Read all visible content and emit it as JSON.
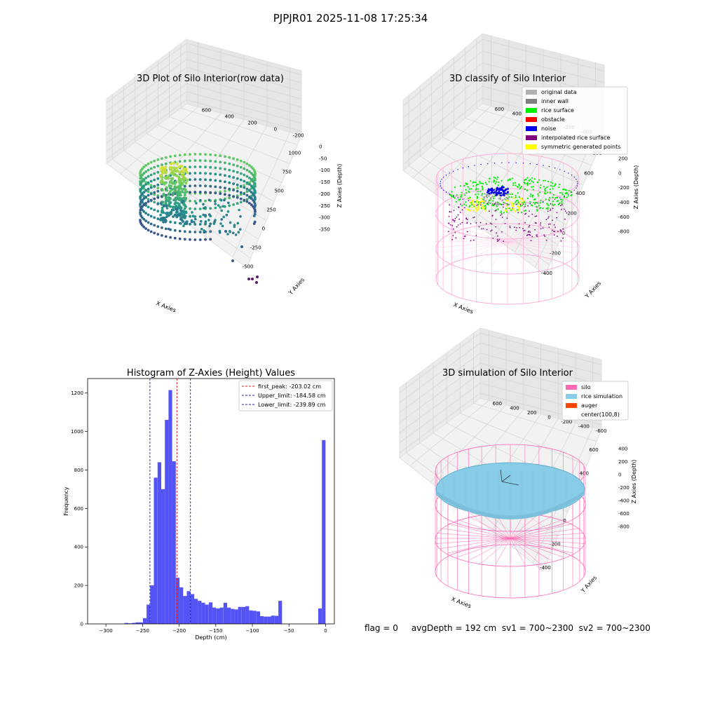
{
  "suptitle": "PJPJR01 2025-11-08 17:25:34",
  "footer_text": "flag = 0     avgDepth = 192 cm  sv1 = 700~2300  sv2 = 700~2300",
  "colors": {
    "hist_bar": "#4a4af5",
    "peak_line": "#e8191c",
    "limit_line": "#2323a8",
    "pane": "#f2f2f2",
    "silo": "#ff69b4",
    "rice_sim": "#87cde8",
    "auger": "#ff4500"
  },
  "chart_data": [
    {
      "id": "raw3d",
      "type": "scatter",
      "title": "3D Plot of Silo Interior(row data)",
      "xlabel": "X Axies",
      "ylabel": "Y Axies",
      "zlabel": "Z Axies (Depth)",
      "x_ticks": [
        "-500",
        "-250",
        "0",
        "250",
        "500",
        "750",
        "1000"
      ],
      "y_ticks": [
        "-200",
        "0",
        "200",
        "400",
        "600"
      ],
      "z_ticks": [
        "0",
        "-50",
        "-100",
        "-150",
        "-200",
        "-250",
        "-300",
        "-350"
      ],
      "colormap": "viridis"
    },
    {
      "id": "classify3d",
      "type": "scatter",
      "title": "3D classify of Silo Interior",
      "xlabel": "X Axies",
      "ylabel": "Y Axies",
      "zlabel": "Z Axies (Depth)",
      "x_ticks": [
        "-400",
        "-200",
        "0",
        "200",
        "400",
        "600",
        "800"
      ],
      "y_ticks": [
        "-600",
        "-400",
        "-200",
        "0",
        "200",
        "400",
        "600"
      ],
      "z_ticks": [
        "200",
        "0",
        "-200",
        "-400",
        "-600",
        "-800"
      ],
      "legend": [
        {
          "label": "original data",
          "color": "#b0b0b0"
        },
        {
          "label": "inner wall",
          "color": "#808080"
        },
        {
          "label": "rice surface",
          "color": "#00ee00"
        },
        {
          "label": "obstacle",
          "color": "#ff0000"
        },
        {
          "label": "noise",
          "color": "#0000ee"
        },
        {
          "label": "interpolated rice surface",
          "color": "#800080"
        },
        {
          "label": "symmetric generated points",
          "color": "#ffff00"
        }
      ]
    },
    {
      "id": "hist",
      "type": "bar",
      "title": "Histogram of Z-Axies (Height) Values",
      "xlabel": "Depth (cm)",
      "ylabel": "Frequency",
      "xlim": [
        -325,
        12
      ],
      "ylim": [
        0,
        1275
      ],
      "x_ticks": [
        -300,
        -250,
        -200,
        -150,
        -100,
        -50,
        0
      ],
      "y_ticks": [
        0,
        200,
        400,
        600,
        800,
        1000,
        1200
      ],
      "bin_width": 5,
      "bins": [
        {
          "x": -272,
          "v": 5
        },
        {
          "x": -267,
          "v": 3
        },
        {
          "x": -262,
          "v": 5
        },
        {
          "x": -257,
          "v": 8
        },
        {
          "x": -252,
          "v": 8
        },
        {
          "x": -247,
          "v": 30
        },
        {
          "x": -242,
          "v": 100
        },
        {
          "x": -237,
          "v": 200
        },
        {
          "x": -232,
          "v": 760
        },
        {
          "x": -227,
          "v": 840
        },
        {
          "x": -222,
          "v": 700
        },
        {
          "x": -217,
          "v": 1060
        },
        {
          "x": -212,
          "v": 1215
        },
        {
          "x": -207,
          "v": 845
        },
        {
          "x": -202,
          "v": 240
        },
        {
          "x": -197,
          "v": 190
        },
        {
          "x": -192,
          "v": 145
        },
        {
          "x": -187,
          "v": 170
        },
        {
          "x": -182,
          "v": 155
        },
        {
          "x": -177,
          "v": 130
        },
        {
          "x": -172,
          "v": 120
        },
        {
          "x": -167,
          "v": 110
        },
        {
          "x": -162,
          "v": 100
        },
        {
          "x": -157,
          "v": 112
        },
        {
          "x": -152,
          "v": 85
        },
        {
          "x": -147,
          "v": 80
        },
        {
          "x": -142,
          "v": 85
        },
        {
          "x": -137,
          "v": 110
        },
        {
          "x": -132,
          "v": 85
        },
        {
          "x": -127,
          "v": 78
        },
        {
          "x": -122,
          "v": 75
        },
        {
          "x": -117,
          "v": 88
        },
        {
          "x": -112,
          "v": 88
        },
        {
          "x": -107,
          "v": 92
        },
        {
          "x": -102,
          "v": 70
        },
        {
          "x": -97,
          "v": 68
        },
        {
          "x": -92,
          "v": 65
        },
        {
          "x": -87,
          "v": 40
        },
        {
          "x": -82,
          "v": 38
        },
        {
          "x": -77,
          "v": 38
        },
        {
          "x": -72,
          "v": 43
        },
        {
          "x": -67,
          "v": 42
        },
        {
          "x": -62,
          "v": 120
        },
        {
          "x": -57,
          "v": 80
        },
        {
          "x": -52,
          "v": 955
        }
      ],
      "vlines": [
        {
          "label": "first_peak: -203.02 cm",
          "x": -203.02,
          "color": "#e8191c"
        },
        {
          "label": "Upper_limit: -184.58 cm",
          "x": -184.58,
          "color": "#2323a8"
        },
        {
          "label": "Lower_limit: -239.89 cm",
          "x": -239.89,
          "color": "#2323a8"
        }
      ]
    },
    {
      "id": "sim3d",
      "type": "surface",
      "title": "3D simulation of Silo Interior",
      "xlabel": "X Axies",
      "ylabel": "Y Axies",
      "zlabel": "Z Axies (Depth)",
      "x_ticks": [
        "-400",
        "-200",
        "0",
        "200",
        "400",
        "600"
      ],
      "y_ticks": [
        "-600",
        "-400",
        "-200",
        "0",
        "200",
        "400",
        "600"
      ],
      "z_ticks": [
        "400",
        "200",
        "0",
        "-200",
        "-400",
        "-600",
        "-800"
      ],
      "legend": [
        {
          "label": "silo",
          "color": "#ff69b4"
        },
        {
          "label": "rice simulation",
          "color": "#87cde8"
        },
        {
          "label": "auger",
          "color": "#ff4500"
        },
        {
          "label": "center(100,8)",
          "color": ""
        }
      ]
    }
  ]
}
